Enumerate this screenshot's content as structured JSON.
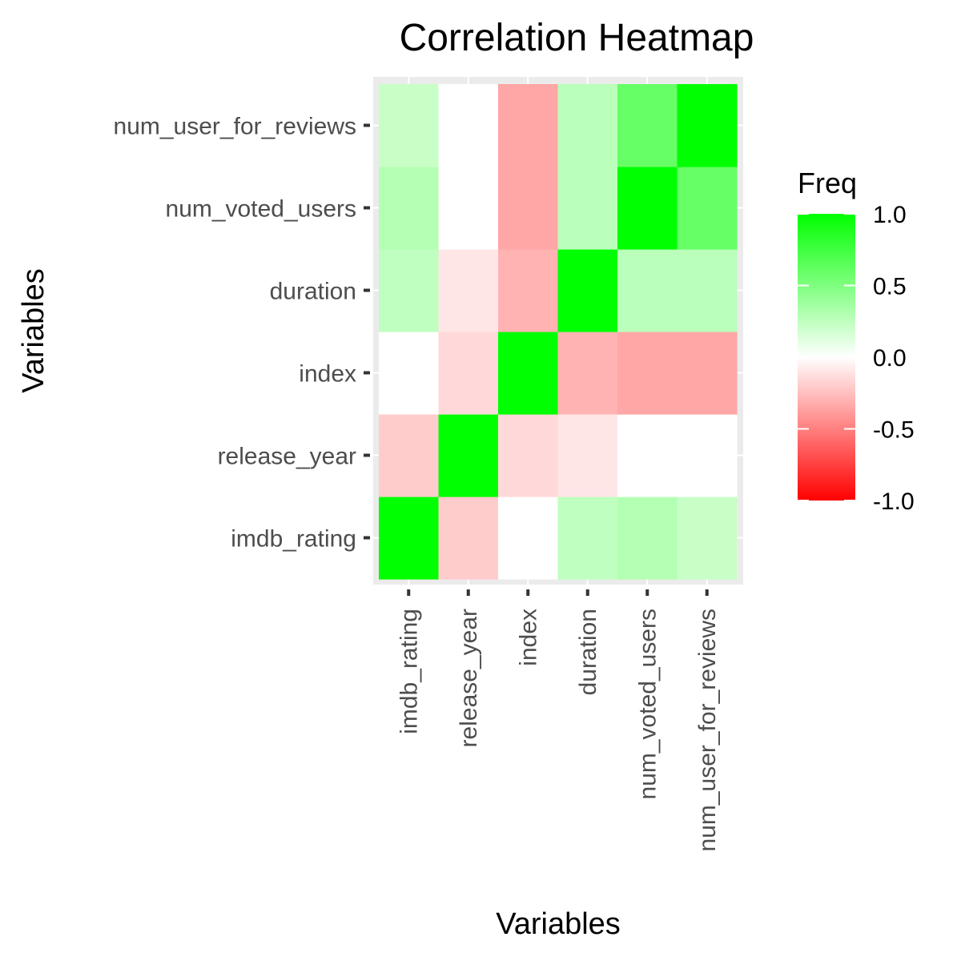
{
  "chart_data": {
    "type": "heatmap",
    "title": "Correlation Heatmap",
    "xlabel": "Variables",
    "ylabel": "Variables",
    "x_categories": [
      "imdb_rating",
      "release_year",
      "index",
      "duration",
      "num_voted_users",
      "num_user_for_reviews"
    ],
    "y_categories": [
      "imdb_rating",
      "release_year",
      "index",
      "duration",
      "num_voted_users",
      "num_user_for_reviews"
    ],
    "matrix": [
      [
        1.0,
        -0.2,
        0.0,
        0.25,
        0.3,
        0.22
      ],
      [
        -0.2,
        1.0,
        -0.15,
        -0.1,
        0.0,
        0.0
      ],
      [
        0.0,
        -0.15,
        1.0,
        -0.3,
        -0.35,
        -0.35
      ],
      [
        0.25,
        -0.1,
        -0.3,
        1.0,
        0.27,
        0.27
      ],
      [
        0.3,
        0.0,
        -0.35,
        0.27,
        1.0,
        0.6
      ],
      [
        0.22,
        0.0,
        -0.35,
        0.27,
        0.6,
        1.0
      ]
    ],
    "legend": {
      "title": "Freq",
      "ticks": [
        "1.0",
        "0.5",
        "0.0",
        "-0.5",
        "-1.0"
      ],
      "tick_values": [
        1.0,
        0.5,
        0.0,
        -0.5,
        -1.0
      ],
      "range": [
        -1.0,
        1.0
      ],
      "placement": "right"
    },
    "colors": {
      "low": "#ff0000",
      "mid": "#ffffff",
      "high": "#00ff00",
      "panel_background": "#ebebeb",
      "grid": "#ffffff"
    },
    "grid": true
  }
}
